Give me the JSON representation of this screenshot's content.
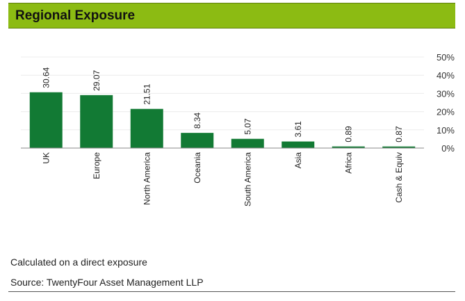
{
  "header": {
    "title": "Regional Exposure",
    "bar_color": "#8cbb13"
  },
  "chart_data": {
    "type": "bar",
    "title": "Regional Exposure",
    "categories": [
      "UK",
      "Europe",
      "North America",
      "Oceania",
      "South America",
      "Asia",
      "Africa",
      "Cash & Equiv"
    ],
    "values": [
      30.64,
      29.07,
      21.51,
      8.34,
      5.07,
      3.61,
      0.89,
      0.87
    ],
    "data_labels": [
      "30.64",
      "29.07",
      "21.51",
      "8.34",
      "5.07",
      "3.61",
      "0.89",
      "0.87"
    ],
    "ylim": [
      0,
      50
    ],
    "yticks": [
      0,
      10,
      20,
      30,
      40,
      50
    ],
    "ytick_labels": [
      "0%",
      "10%",
      "20%",
      "30%",
      "40%",
      "50%"
    ],
    "y_axis_position": "right",
    "grid": true,
    "xlabel": "",
    "ylabel": "",
    "bar_color": "#127a34"
  },
  "footer": {
    "note": "Calculated on a direct exposure",
    "source": "Source: TwentyFour Asset Management LLP"
  }
}
